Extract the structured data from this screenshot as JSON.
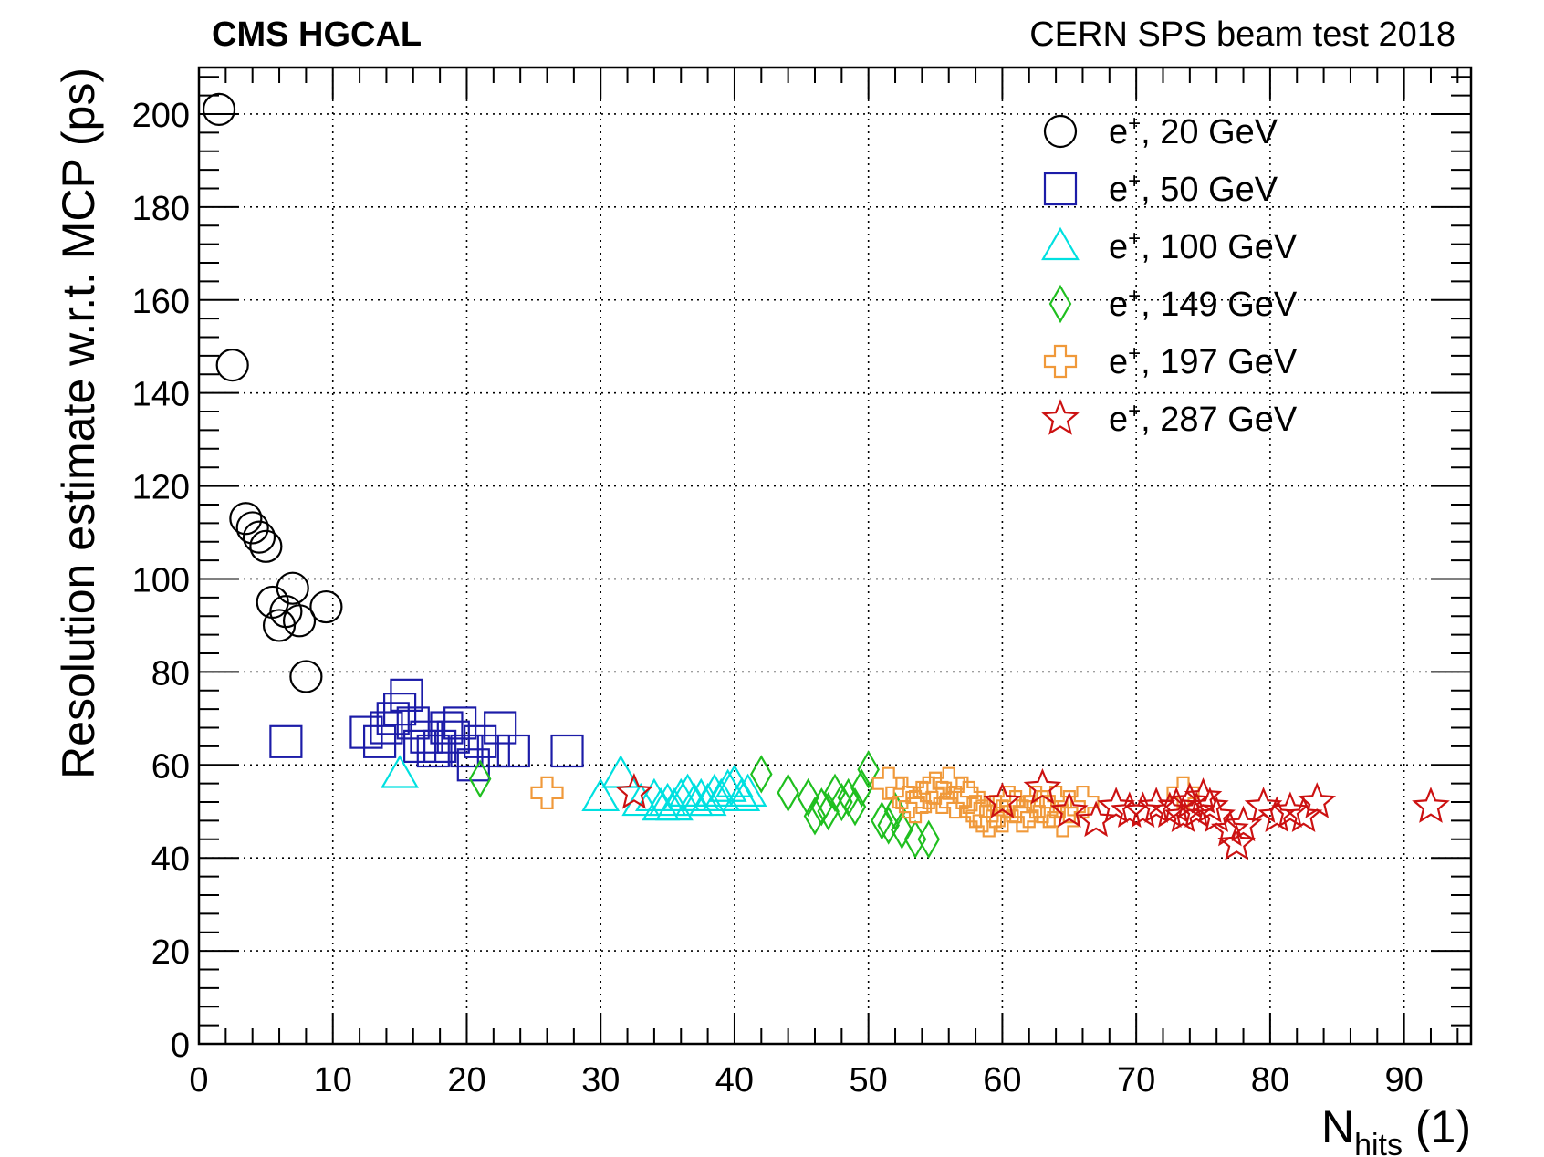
{
  "chart_data": {
    "type": "scatter",
    "title_left": "CMS HGCAL",
    "title_right": "CERN SPS beam test 2018",
    "xlabel_main": "N",
    "xlabel_sub": "hits",
    "xlabel_unit": " (1)",
    "ylabel": "Resolution estimate w.r.t. MCP (ps)",
    "xlim": [
      0,
      95
    ],
    "ylim": [
      0,
      210
    ],
    "xticks": [
      "0",
      "10",
      "20",
      "30",
      "40",
      "50",
      "60",
      "70",
      "80",
      "90"
    ],
    "yticks": [
      "0",
      "20",
      "40",
      "60",
      "80",
      "100",
      "120",
      "140",
      "160",
      "180",
      "200"
    ],
    "grid": true,
    "legend_position": "top-right",
    "series": [
      {
        "name": "e+, 20 GeV",
        "label_base": "e",
        "label_sup": "+",
        "label_rest": ", 20 GeV",
        "marker": "circle",
        "color": "#000000",
        "x": [
          1.5,
          2.5,
          3.5,
          4.0,
          4.5,
          5.0,
          5.5,
          6.0,
          6.5,
          7.0,
          7.5,
          8.0,
          9.5
        ],
        "y": [
          201,
          146,
          113,
          111,
          109,
          107,
          95,
          90,
          93,
          98,
          91,
          79,
          94
        ]
      },
      {
        "name": "e+, 50 GeV",
        "label_base": "e",
        "label_sup": "+",
        "label_rest": ", 50 GeV",
        "marker": "square",
        "color": "#1c1ca8",
        "x": [
          6.5,
          12.5,
          13.5,
          14.0,
          14.5,
          15.0,
          15.5,
          16.0,
          16.5,
          17.0,
          17.5,
          18.0,
          18.5,
          19.0,
          19.5,
          20.0,
          20.5,
          21.0,
          22.0,
          22.5,
          23.5,
          27.5
        ],
        "y": [
          65,
          67,
          65,
          68,
          70,
          72,
          75,
          69,
          64,
          66,
          63,
          64,
          68,
          66,
          69,
          63,
          60,
          65,
          63,
          68,
          63,
          63
        ]
      },
      {
        "name": "e+, 100 GeV",
        "label_base": "e",
        "label_sup": "+",
        "label_rest": ", 100 GeV",
        "marker": "triangle",
        "color": "#00e0e0",
        "x": [
          15,
          30.0,
          31.5,
          33.0,
          34.0,
          34.5,
          35.0,
          35.5,
          36.0,
          36.5,
          37.0,
          37.5,
          38.0,
          38.5,
          39.0,
          39.5,
          40.0,
          40.5,
          41.0
        ],
        "y": [
          58,
          53,
          58,
          52,
          53,
          51,
          52,
          51,
          53,
          54,
          52,
          53,
          52,
          54,
          53,
          55,
          56,
          53,
          54
        ]
      },
      {
        "name": "e+, 149 GeV",
        "label_base": "e",
        "label_sup": "+",
        "label_rest": ", 149 GeV",
        "marker": "diamond",
        "color": "#1fbf1f",
        "x": [
          21,
          42.0,
          44.0,
          45.5,
          46.0,
          46.5,
          47.0,
          47.5,
          48.0,
          48.5,
          49.0,
          49.5,
          50.0,
          51.0,
          51.5,
          52.0,
          52.5,
          53.5,
          54.5
        ],
        "y": [
          57,
          58,
          54,
          53,
          49,
          51,
          50,
          54,
          52,
          53,
          51,
          55,
          59,
          48,
          47,
          50,
          46,
          44,
          44
        ]
      },
      {
        "name": "e+, 197 GeV",
        "label_base": "e",
        "label_sup": "+",
        "label_rest": ", 197 GeV",
        "marker": "cross",
        "color": "#f0993a",
        "x": [
          26,
          51.5,
          52.5,
          53.0,
          53.5,
          54.0,
          54.5,
          55.0,
          55.5,
          56.0,
          56.5,
          57.0,
          57.5,
          58.0,
          58.5,
          59.0,
          59.5,
          60.0,
          60.5,
          61.0,
          61.5,
          62.0,
          62.5,
          63.0,
          63.5,
          64.0,
          64.5,
          65.0,
          66.0,
          73.5
        ],
        "y": [
          54,
          56,
          54,
          52,
          51,
          53,
          54,
          55,
          53,
          56,
          52,
          54,
          53,
          50,
          49,
          48,
          50,
          49,
          52,
          51,
          49,
          50,
          52,
          51,
          50,
          52,
          48,
          51,
          52,
          54
        ]
      },
      {
        "name": "e+, 287 GeV",
        "label_base": "e",
        "label_sup": "+",
        "label_rest": ", 287 GeV",
        "marker": "star",
        "color": "#cc1111",
        "x": [
          32.5,
          60.0,
          63.0,
          65.0,
          67.0,
          68.5,
          69.5,
          70.5,
          71.5,
          72.5,
          73.0,
          73.5,
          74.0,
          74.5,
          75.0,
          75.5,
          76.0,
          77.0,
          77.5,
          78.0,
          79.5,
          80.5,
          81.5,
          82.5,
          83.5,
          92.0
        ],
        "y": [
          54,
          52,
          55,
          50,
          48,
          51,
          50,
          50,
          51,
          50,
          51,
          49,
          52,
          50,
          53,
          51,
          49,
          46,
          43,
          47,
          51,
          49,
          50,
          49,
          52,
          51
        ]
      }
    ]
  }
}
